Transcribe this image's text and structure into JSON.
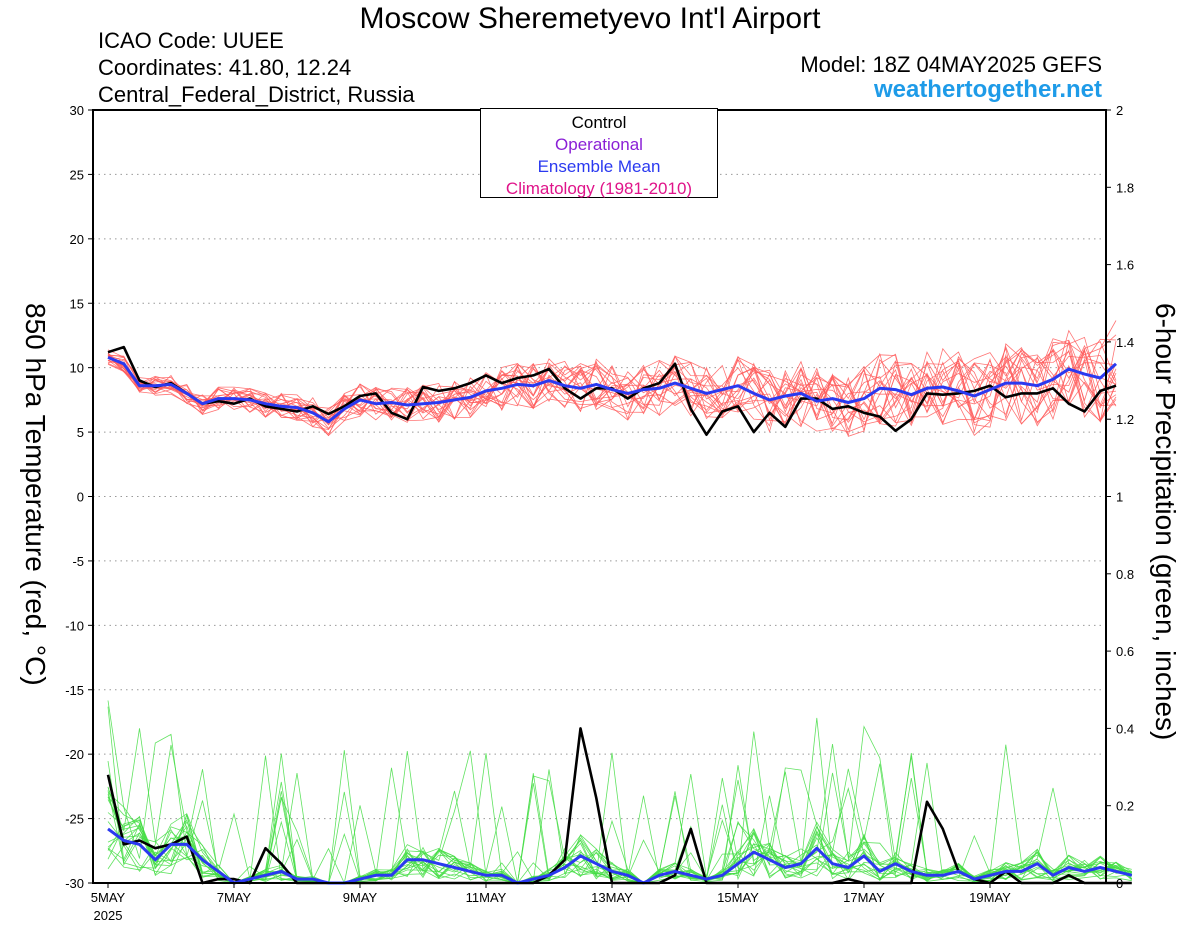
{
  "header": {
    "title": "Moscow Sheremetyevo Int'l Airport",
    "icao": "ICAO Code: UUEE",
    "coordinates": "Coordinates: 41.80, 12.24",
    "region": "Central_Federal_District, Russia",
    "model": "Model: 18Z 04MAY2025 GEFS",
    "site": "weathertogether.net"
  },
  "legend": {
    "items": [
      {
        "label": "Control",
        "color": "#000000"
      },
      {
        "label": "Operational",
        "color": "#8a1fd6"
      },
      {
        "label": "Ensemble Mean",
        "color": "#2a39f0"
      },
      {
        "label": "Climatology (1981-2010)",
        "color": "#e0148a"
      }
    ]
  },
  "chart_data": {
    "type": "line",
    "title": "Moscow Sheremetyevo Int'l Airport",
    "ylabel": "850 hPa Temperature (red, °C)",
    "ylabel_right": "6-hour Precipitation (green, inches)",
    "ylim": [
      -30,
      30
    ],
    "ylim_right": [
      0,
      2
    ],
    "x_start": "5MAY",
    "x_step_hours": 6,
    "x_tick_labels": [
      "5MAY",
      "7MAY",
      "9MAY",
      "11MAY",
      "13MAY",
      "15MAY",
      "17MAY",
      "19MAY"
    ],
    "x_tick_sublabel": "2025",
    "y_ticks": [
      30,
      25,
      20,
      15,
      10,
      5,
      0,
      -5,
      -10,
      -15,
      -20,
      -25,
      -30
    ],
    "y_ticks_right": [
      "2",
      "1.8",
      "1.6",
      "1.4",
      "1.2",
      "1",
      "0.8",
      "0.6",
      "0.4",
      "0.2",
      "0"
    ],
    "grid": "horizontal dotted",
    "legend_position": "top-center",
    "colors": {
      "temperature_members": "#ff5c5c",
      "precip_members": "#44dd44",
      "control": "#000000",
      "ensemble_mean": "#2a39f0"
    },
    "series": [
      {
        "name": "Control",
        "kind": "temperature",
        "values": [
          11.2,
          11.6,
          9.0,
          8.5,
          8.8,
          8.0,
          7.2,
          7.4,
          7.2,
          7.6,
          7.0,
          6.8,
          6.6,
          7.0,
          6.4,
          7.0,
          7.8,
          8.0,
          6.5,
          6.0,
          8.5,
          8.2,
          8.4,
          8.8,
          9.4,
          8.8,
          9.2,
          9.4,
          9.9,
          8.4,
          7.6,
          8.4,
          8.4,
          7.6,
          8.4,
          8.8,
          10.3,
          6.8,
          4.8,
          6.6,
          7.0,
          5.0,
          6.5,
          5.4,
          7.6,
          7.6,
          6.8,
          7.0,
          6.5,
          6.2,
          5.1,
          6.0,
          8.0,
          7.9,
          8.0,
          8.2,
          8.6,
          7.7,
          8.0,
          8.0,
          8.4,
          7.2,
          6.6,
          8.2,
          8.6
        ]
      },
      {
        "name": "Ensemble Mean",
        "kind": "temperature",
        "values": [
          10.8,
          10.3,
          8.6,
          8.6,
          8.7,
          8.0,
          7.2,
          7.6,
          7.6,
          7.5,
          7.2,
          7.0,
          6.9,
          6.5,
          5.8,
          6.8,
          7.5,
          7.2,
          7.3,
          7.1,
          7.2,
          7.3,
          7.5,
          7.7,
          8.2,
          8.4,
          8.7,
          8.6,
          9.0,
          8.6,
          8.4,
          8.7,
          8.3,
          8.0,
          8.3,
          8.4,
          8.8,
          8.4,
          8.0,
          8.3,
          8.6,
          8.0,
          7.5,
          7.8,
          8.0,
          7.4,
          7.6,
          7.3,
          7.6,
          8.4,
          8.3,
          7.9,
          8.4,
          8.5,
          8.2,
          7.8,
          8.3,
          8.8,
          8.8,
          8.6,
          9.1,
          9.9,
          9.5,
          9.2,
          10.3
        ]
      },
      {
        "name": "Control",
        "kind": "precipitation",
        "values": [
          0.28,
          0.1,
          0.11,
          0.09,
          0.1,
          0.12,
          0.0,
          0.01,
          0.01,
          0.0,
          0.09,
          0.05,
          0.0,
          0.0,
          0.0,
          0.0,
          0.0,
          0.0,
          0.0,
          0.0,
          0.0,
          0.0,
          0.0,
          0.0,
          0.0,
          0.0,
          0.0,
          0.0,
          0.02,
          0.06,
          0.4,
          0.22,
          0.0,
          0.0,
          0.0,
          0.0,
          0.02,
          0.14,
          0.0,
          0.0,
          0.0,
          0.0,
          0.0,
          0.0,
          0.0,
          0.0,
          0.0,
          0.01,
          0.0,
          0.0,
          0.0,
          0.0,
          0.21,
          0.14,
          0.03,
          0.01,
          0.0,
          0.03,
          0.0,
          0.0,
          0.0,
          0.02,
          0.0,
          0.0,
          0.0,
          0.0
        ]
      },
      {
        "name": "Ensemble Mean",
        "kind": "precipitation",
        "values": [
          0.14,
          0.11,
          0.1,
          0.06,
          0.1,
          0.1,
          0.06,
          0.03,
          0.0,
          0.01,
          0.02,
          0.03,
          0.01,
          0.01,
          0.0,
          0.0,
          0.01,
          0.02,
          0.02,
          0.06,
          0.06,
          0.05,
          0.04,
          0.03,
          0.02,
          0.02,
          0.0,
          0.01,
          0.02,
          0.04,
          0.07,
          0.05,
          0.03,
          0.02,
          0.0,
          0.02,
          0.03,
          0.02,
          0.01,
          0.02,
          0.05,
          0.08,
          0.06,
          0.04,
          0.05,
          0.09,
          0.05,
          0.04,
          0.07,
          0.03,
          0.05,
          0.03,
          0.02,
          0.02,
          0.03,
          0.01,
          0.02,
          0.03,
          0.03,
          0.05,
          0.02,
          0.04,
          0.03,
          0.04,
          0.03,
          0.02
        ]
      }
    ],
    "ensemble_members_count": 20
  }
}
